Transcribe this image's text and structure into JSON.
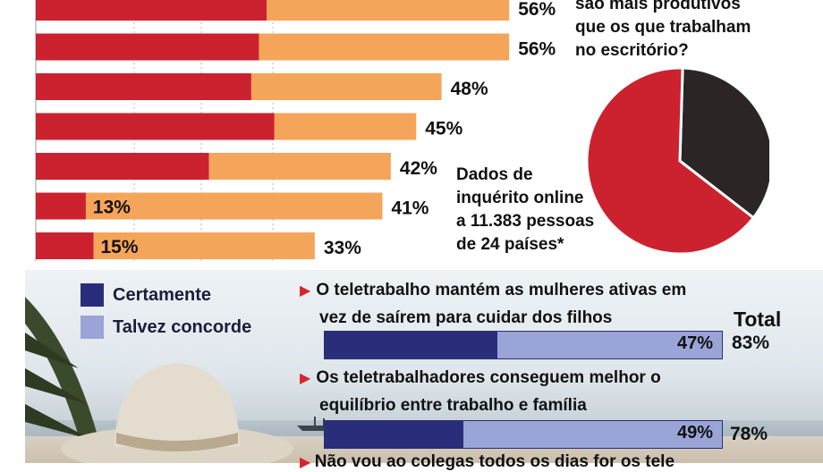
{
  "chart_data": [
    {
      "type": "bar",
      "stacked": true,
      "orientation": "horizontal",
      "series_colors": [
        "#cc2230",
        "#f5a55a"
      ],
      "rows": [
        {
          "inner": 60,
          "total": 56,
          "inner_label": "",
          "total_label": "56%"
        },
        {
          "inner": 58,
          "total": 56,
          "inner_label": "",
          "total_label": "56%"
        },
        {
          "inner": 56,
          "total": 48,
          "inner_label": "",
          "total_label": "48%"
        },
        {
          "inner": 62,
          "total": 45,
          "inner_label": "",
          "total_label": "45%"
        },
        {
          "inner": 45,
          "total": 42,
          "inner_label": "",
          "total_label": "42%"
        },
        {
          "inner": 13,
          "total": 41,
          "inner_label": "13%",
          "total_label": "41%"
        },
        {
          "inner": 15,
          "total": 33,
          "inner_label": "15%",
          "total_label": "33%"
        }
      ]
    },
    {
      "type": "pie",
      "question": [
        "são mais produtivos",
        "que os que trabalham",
        "no escritório?"
      ],
      "slices": [
        {
          "value": 35,
          "color": "#2b2526"
        },
        {
          "value": 65,
          "color": "#cc2230"
        }
      ]
    },
    {
      "type": "bar",
      "stacked": true,
      "orientation": "horizontal",
      "legend": [
        {
          "label": "Certamente",
          "color": "#2a2e7a"
        },
        {
          "label": "Talvez concorde",
          "color": "#9aa4d6"
        }
      ],
      "total_header": "Total",
      "items": [
        {
          "statement": [
            "O teletrabalho mantém as mulheres ativas em",
            "vez de saírem para cuidar dos filhos"
          ],
          "certainly": 36,
          "certainly_label": "",
          "maybe_label": "47%",
          "total": 83,
          "total_label": "83%"
        },
        {
          "statement": [
            "Os teletrabalhadores conseguem melhor o",
            "equilíbrio entre trabalho e família"
          ],
          "certainly": 29,
          "certainly_label": "",
          "maybe_label": "49%",
          "total": 78,
          "total_label": "78%"
        }
      ],
      "cut_statement": "Não vou ao colegas todos os dias for os tele"
    }
  ],
  "survey_note": [
    "Dados de",
    "inquérito online",
    "a 11.383 pessoas",
    "de 24 países*"
  ]
}
